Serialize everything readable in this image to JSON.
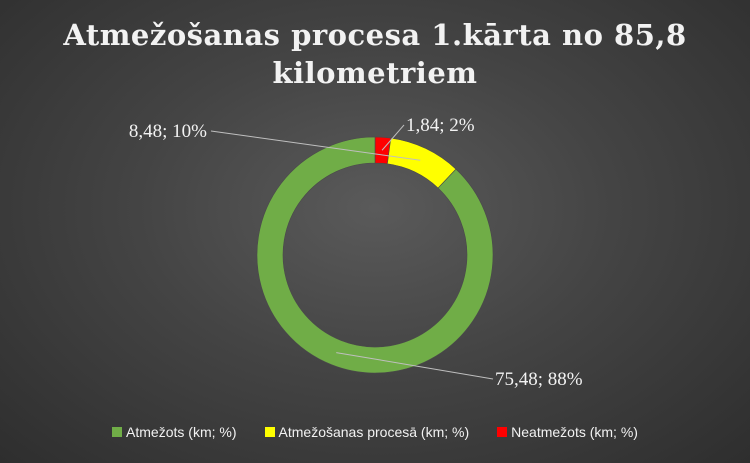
{
  "chart_data": {
    "type": "pie",
    "style": "doughnut",
    "title_lines": [
      "Atmežošanas procesa 1.kārta no 85,8",
      "kilometriem"
    ],
    "slices": [
      {
        "name": "Atmežots (km; %)",
        "value": 75.48,
        "percent": 88,
        "label": "75,48; 88%",
        "color": "#70ad47"
      },
      {
        "name": "Atmežošanas procesā (km; %)",
        "value": 8.48,
        "percent": 10,
        "label": "8,48; 10%",
        "color": "#ffff00"
      },
      {
        "name": "Neatmežots  (km; %)",
        "value": 1.84,
        "percent": 2,
        "label": "1,84; 2%",
        "color": "#ff0000"
      }
    ],
    "legend_position": "bottom"
  }
}
